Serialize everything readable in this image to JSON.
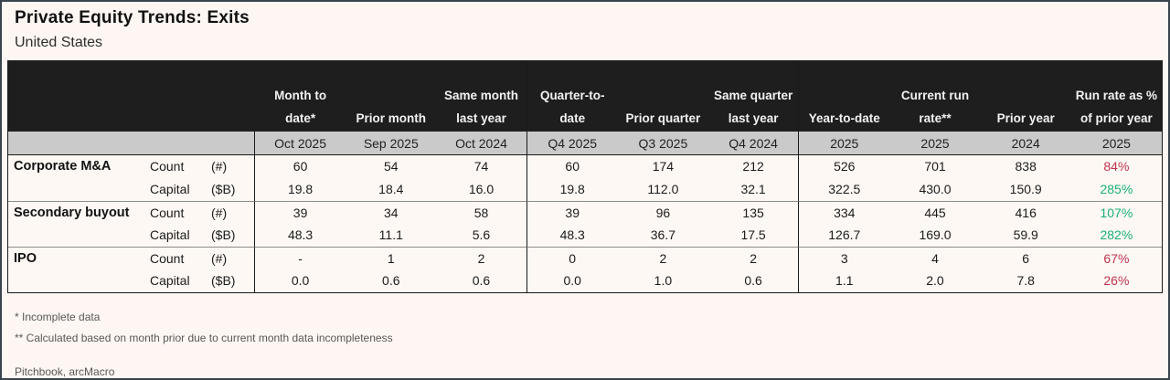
{
  "page": {
    "title": "Private Equity Trends: Exits",
    "subtitle": "United States"
  },
  "table": {
    "columns": [
      {
        "header": "Month to date*",
        "subheader": "Oct 2025",
        "group_end": false
      },
      {
        "header": "Prior month",
        "subheader": "Sep 2025",
        "group_end": false
      },
      {
        "header": "Same month last year",
        "subheader": "Oct 2024",
        "group_end": true
      },
      {
        "header": "Quarter-to-date",
        "subheader": "Q4 2025",
        "group_end": false
      },
      {
        "header": "Prior quarter",
        "subheader": "Q3 2025",
        "group_end": false
      },
      {
        "header": "Same quarter last year",
        "subheader": "Q4 2024",
        "group_end": true
      },
      {
        "header": "Year-to-date",
        "subheader": "2025",
        "group_end": false
      },
      {
        "header": "Current run rate**",
        "subheader": "2025",
        "group_end": false
      },
      {
        "header": "Prior year",
        "subheader": "2024",
        "group_end": false
      },
      {
        "header": "Run rate as % of prior year",
        "subheader": "2025",
        "group_end": false
      }
    ],
    "groups": [
      {
        "label": "Corporate M&A",
        "rows": [
          {
            "metric": "Count",
            "unit": "(#)",
            "values": [
              "60",
              "54",
              "74",
              "60",
              "174",
              "212",
              "526",
              "701",
              "838"
            ],
            "run_rate_pct": "84%",
            "run_rate_sentiment": "negative"
          },
          {
            "metric": "Capital",
            "unit": "($B)",
            "values": [
              "19.8",
              "18.4",
              "16.0",
              "19.8",
              "112.0",
              "32.1",
              "322.5",
              "430.0",
              "150.9"
            ],
            "run_rate_pct": "285%",
            "run_rate_sentiment": "positive"
          }
        ]
      },
      {
        "label": "Secondary buyout",
        "rows": [
          {
            "metric": "Count",
            "unit": "(#)",
            "values": [
              "39",
              "34",
              "58",
              "39",
              "96",
              "135",
              "334",
              "445",
              "416"
            ],
            "run_rate_pct": "107%",
            "run_rate_sentiment": "positive"
          },
          {
            "metric": "Capital",
            "unit": "($B)",
            "values": [
              "48.3",
              "11.1",
              "5.6",
              "48.3",
              "36.7",
              "17.5",
              "126.7",
              "169.0",
              "59.9"
            ],
            "run_rate_pct": "282%",
            "run_rate_sentiment": "positive"
          }
        ]
      },
      {
        "label": "IPO",
        "rows": [
          {
            "metric": "Count",
            "unit": "(#)",
            "values": [
              "-",
              "1",
              "2",
              "0",
              "2",
              "2",
              "3",
              "4",
              "6"
            ],
            "run_rate_pct": "67%",
            "run_rate_sentiment": "negative"
          },
          {
            "metric": "Capital",
            "unit": "($B)",
            "values": [
              "0.0",
              "0.6",
              "0.6",
              "0.0",
              "1.0",
              "0.6",
              "1.1",
              "2.0",
              "7.8"
            ],
            "run_rate_pct": "26%",
            "run_rate_sentiment": "negative"
          }
        ]
      }
    ]
  },
  "footnotes": {
    "line1": "* Incomplete data",
    "line2": "** Calculated based on month prior due to current month data incompleteness",
    "source": "Pitchbook, arcMacro"
  },
  "colors": {
    "positive": "#19B172",
    "negative": "#C0334E",
    "header_bg": "#1E1E1E",
    "subheader_bg": "#CACACA",
    "page_bg": "#FDF6F2",
    "frame_border": "#3A444C"
  }
}
